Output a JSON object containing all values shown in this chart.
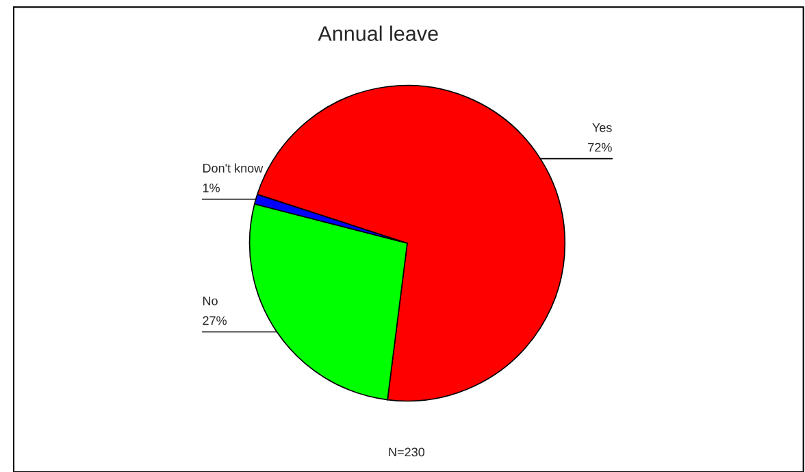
{
  "chart_data": {
    "type": "pie",
    "title": "Annual leave",
    "categories": [
      "Yes",
      "No",
      "Don't know"
    ],
    "values": [
      72,
      27,
      1
    ],
    "colors": [
      "#ff0000",
      "#00ff00",
      "#0000ff"
    ],
    "value_labels": [
      "72%",
      "27%",
      "1%"
    ],
    "annotations": [
      "N=230"
    ]
  }
}
